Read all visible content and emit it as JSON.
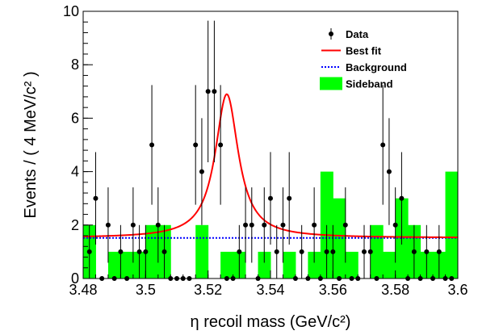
{
  "chart_data": {
    "type": "scatter",
    "xlabel": "η recoil mass (GeV/c²)",
    "ylabel": "Events / ( 4 MeV/c² )",
    "xlim": [
      3.48,
      3.6
    ],
    "ylim": [
      0,
      10
    ],
    "x_ticks": [
      "3.48",
      "3.5",
      "3.52",
      "3.54",
      "3.56",
      "3.58",
      "3.6"
    ],
    "y_ticks": [
      "0",
      "2",
      "4",
      "6",
      "8",
      "10"
    ],
    "grid": false,
    "legend_position": "top-right",
    "legend": [
      {
        "label": "Data",
        "kind": "marker",
        "color": "#000000"
      },
      {
        "label": "Best fit",
        "kind": "solid-line",
        "color": "#ff0000"
      },
      {
        "label": "Background",
        "kind": "dotted-line",
        "color": "#0000ff"
      },
      {
        "label": "Sideband",
        "kind": "box",
        "color": "#00ff00"
      }
    ],
    "series": [
      {
        "name": "Data",
        "x": [
          3.482,
          3.484,
          3.486,
          3.488,
          3.49,
          3.492,
          3.494,
          3.496,
          3.498,
          3.5,
          3.502,
          3.504,
          3.506,
          3.508,
          3.51,
          3.512,
          3.514,
          3.516,
          3.518,
          3.52,
          3.522,
          3.524,
          3.526,
          3.528,
          3.53,
          3.532,
          3.534,
          3.536,
          3.538,
          3.54,
          3.542,
          3.544,
          3.546,
          3.548,
          3.55,
          3.552,
          3.554,
          3.556,
          3.558,
          3.56,
          3.562,
          3.564,
          3.566,
          3.568,
          3.57,
          3.572,
          3.574,
          3.576,
          3.578,
          3.58,
          3.582,
          3.584,
          3.586,
          3.588,
          3.59,
          3.592,
          3.594,
          3.596,
          3.598
        ],
        "y": [
          1,
          3,
          0,
          2,
          0,
          1,
          0,
          2,
          1,
          1,
          5,
          2,
          1,
          0,
          0,
          0,
          0,
          5,
          4,
          7,
          7,
          5,
          0,
          0,
          1,
          2,
          2,
          0,
          2,
          3,
          1,
          2,
          3,
          0,
          1,
          0,
          2,
          0,
          1,
          1,
          0,
          2,
          0,
          0,
          1,
          1,
          0,
          5,
          4,
          2,
          3,
          0,
          1,
          0,
          1,
          0,
          1,
          0,
          0
        ],
        "y_err": [
          1.0,
          1.73,
          0,
          1.41,
          0,
          1.0,
          0,
          1.41,
          1.0,
          1.0,
          2.24,
          1.41,
          1.0,
          0,
          0,
          0,
          0,
          2.24,
          2.0,
          2.65,
          2.65,
          2.24,
          0,
          0,
          1.0,
          1.41,
          1.41,
          0,
          1.41,
          1.73,
          1.0,
          1.41,
          1.73,
          0,
          1.0,
          0,
          1.41,
          0,
          1.0,
          1.0,
          0,
          1.41,
          0,
          0,
          1.0,
          1.0,
          0,
          2.24,
          2.0,
          1.41,
          1.73,
          0,
          1.0,
          0,
          1.0,
          0,
          1.0,
          0,
          0
        ]
      },
      {
        "name": "Sideband",
        "x": [
          3.482,
          3.486,
          3.49,
          3.494,
          3.498,
          3.502,
          3.506,
          3.51,
          3.514,
          3.518,
          3.522,
          3.526,
          3.53,
          3.534,
          3.538,
          3.542,
          3.546,
          3.55,
          3.554,
          3.558,
          3.562,
          3.566,
          3.57,
          3.574,
          3.578,
          3.582,
          3.586,
          3.59,
          3.594,
          3.598
        ],
        "y": [
          2,
          0,
          1,
          1,
          1,
          2,
          2,
          0,
          0,
          2,
          0,
          1,
          1,
          0,
          1,
          0,
          1,
          0,
          1,
          4,
          3,
          1,
          0,
          2,
          1,
          3,
          2,
          1,
          1,
          4
        ]
      },
      {
        "name": "Best fit",
        "peak_mass": 3.526,
        "peak_height": 6.9,
        "width": 0.0045,
        "baseline": 1.52
      },
      {
        "name": "Background",
        "y": 1.52
      }
    ]
  }
}
